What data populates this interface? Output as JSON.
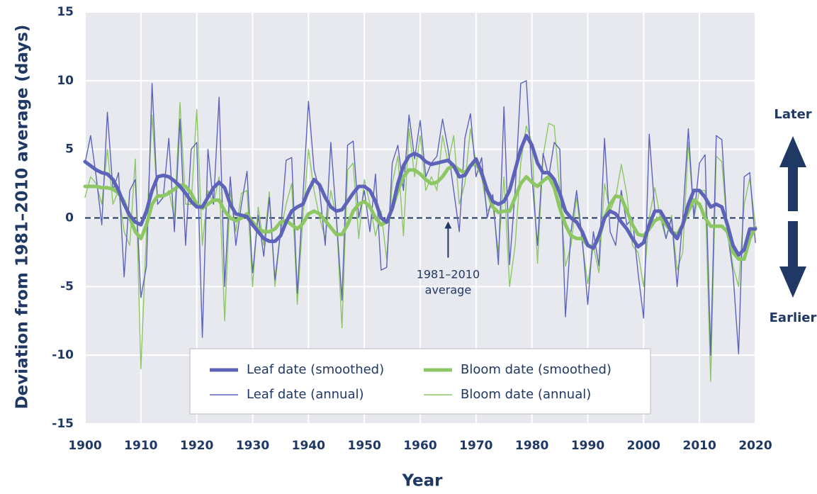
{
  "chart_data": {
    "type": "line",
    "x_label": "Year",
    "y_label": "Deviation from 1981–2010 average (days)",
    "direction_labels": {
      "up": "Later",
      "down": "Earlier"
    },
    "annotation": [
      "1981–2010",
      "average"
    ],
    "reference_line": 0,
    "annotation_x": 1965,
    "xlim": [
      1900,
      2020
    ],
    "ylim": [
      -15,
      15
    ],
    "xticks": [
      1900,
      1910,
      1920,
      1930,
      1940,
      1950,
      1960,
      1970,
      1980,
      1990,
      2000,
      2010,
      2020
    ],
    "yticks": [
      -15,
      -10,
      -5,
      0,
      5,
      10,
      15
    ],
    "grid": true,
    "x": [
      1900,
      1901,
      1902,
      1903,
      1904,
      1905,
      1906,
      1907,
      1908,
      1909,
      1910,
      1911,
      1912,
      1913,
      1914,
      1915,
      1916,
      1917,
      1918,
      1919,
      1920,
      1921,
      1922,
      1923,
      1924,
      1925,
      1926,
      1927,
      1928,
      1929,
      1930,
      1931,
      1932,
      1933,
      1934,
      1935,
      1936,
      1937,
      1938,
      1939,
      1940,
      1941,
      1942,
      1943,
      1944,
      1945,
      1946,
      1947,
      1948,
      1949,
      1950,
      1951,
      1952,
      1953,
      1954,
      1955,
      1956,
      1957,
      1958,
      1959,
      1960,
      1961,
      1962,
      1963,
      1964,
      1965,
      1966,
      1967,
      1968,
      1969,
      1970,
      1971,
      1972,
      1973,
      1974,
      1975,
      1976,
      1977,
      1978,
      1979,
      1980,
      1981,
      1982,
      1983,
      1984,
      1985,
      1986,
      1987,
      1988,
      1989,
      1990,
      1991,
      1992,
      1993,
      1994,
      1995,
      1996,
      1997,
      1998,
      1999,
      2000,
      2001,
      2002,
      2003,
      2004,
      2005,
      2006,
      2007,
      2008,
      2009,
      2010,
      2011,
      2012,
      2013,
      2014,
      2015,
      2016,
      2017,
      2018,
      2019,
      2020
    ],
    "series": [
      {
        "name": "Leaf date (smoothed)",
        "color": "#5d63b9",
        "values": [
          4.1,
          3.8,
          3.5,
          3.3,
          3.2,
          2.8,
          2.0,
          1.0,
          0.2,
          -0.3,
          -0.5,
          0.5,
          2.0,
          3.0,
          3.1,
          3.0,
          2.7,
          2.3,
          1.8,
          1.2,
          0.8,
          0.8,
          1.5,
          2.2,
          2.6,
          2.2,
          1.0,
          0.3,
          0.2,
          0.1,
          -0.5,
          -1.0,
          -1.5,
          -1.7,
          -1.7,
          -1.3,
          -0.3,
          0.5,
          0.8,
          1.0,
          2.0,
          2.8,
          2.4,
          1.5,
          0.8,
          0.5,
          0.6,
          1.2,
          1.8,
          2.3,
          2.3,
          2.0,
          1.2,
          0,
          -0.3,
          0.7,
          2.5,
          3.8,
          4.5,
          4.7,
          4.5,
          4.1,
          3.9,
          4.0,
          4.1,
          4.2,
          3.8,
          3.0,
          3.1,
          3.8,
          4.3,
          3.3,
          2.0,
          1.2,
          1.0,
          1.2,
          2.0,
          3.5,
          5.0,
          6.0,
          5.3,
          4.0,
          3.3,
          3.3,
          2.8,
          1.8,
          0.5,
          0,
          -0.3,
          -1.0,
          -2.0,
          -2.2,
          -1.3,
          0,
          0.5,
          0.3,
          -0.3,
          -0.8,
          -1.5,
          -2.1,
          -1.8,
          -0.5,
          0.5,
          0.5,
          -0.2,
          -1.0,
          -1.5,
          -0.5,
          1.0,
          2.0,
          2.0,
          1.5,
          0.8,
          1.0,
          0.8,
          -0.5,
          -2.0,
          -2.7,
          -2.3,
          -0.8,
          -0.8
        ]
      },
      {
        "name": "Bloom date (smoothed)",
        "color": "#8dc763",
        "values": [
          2.3,
          2.3,
          2.3,
          2.2,
          2.2,
          2.1,
          1.8,
          1.2,
          0,
          -1.0,
          -1.5,
          -0.5,
          1.0,
          1.6,
          1.6,
          1.8,
          2.1,
          2.4,
          2.3,
          1.8,
          1.0,
          0.7,
          1.0,
          1.3,
          1.3,
          0.5,
          0,
          -0.2,
          0,
          0.3,
          -0.3,
          -0.8,
          -1.0,
          -1.0,
          -0.8,
          -0.3,
          -0.2,
          -0.5,
          -0.8,
          -0.4,
          0.3,
          0.5,
          0.3,
          -0.2,
          -0.7,
          -1.2,
          -1.2,
          -0.5,
          0.5,
          1.0,
          1.2,
          0.8,
          0,
          -0.5,
          -0.3,
          0.7,
          2.0,
          3.0,
          3.5,
          3.5,
          3.2,
          2.8,
          2.5,
          2.6,
          3.0,
          3.6,
          3.8,
          3.5,
          3.3,
          3.8,
          4.0,
          3.2,
          2.0,
          0.8,
          0.4,
          0.5,
          0.5,
          1.5,
          2.5,
          3.0,
          2.6,
          2.3,
          2.7,
          3.0,
          2.2,
          0.7,
          -0.5,
          -1.3,
          -1.5,
          -1.5,
          -2.0,
          -2.1,
          -1.5,
          0,
          1.0,
          1.6,
          1.5,
          0.5,
          -0.5,
          -1.2,
          -1.3,
          -0.8,
          -0.2,
          0,
          -0.5,
          -1.0,
          -1.2,
          -0.5,
          0.5,
          1.3,
          1.0,
          0,
          -0.6,
          -0.6,
          -0.6,
          -1.0,
          -2.5,
          -3.0,
          -3.0,
          -1.5,
          -0.7
        ]
      },
      {
        "name": "Leaf date (annual)",
        "color": "#5d63b9",
        "values": [
          4,
          6,
          3,
          -0.5,
          7.7,
          2,
          3.3,
          -4.3,
          2,
          2.8,
          -5.8,
          -3.5,
          9.8,
          1,
          1.5,
          5.8,
          -1,
          7.2,
          -2,
          5,
          5.5,
          -8.7,
          5,
          1,
          8.8,
          -5,
          3,
          -2,
          1,
          3.4,
          -4,
          0.2,
          -2.8,
          1.5,
          -4.5,
          -1,
          4.2,
          4.4,
          -5.5,
          1.5,
          8.5,
          3.5,
          2,
          -2,
          5.5,
          0,
          -6,
          5.3,
          5.6,
          0,
          2,
          -1,
          3.2,
          -3.8,
          -3.6,
          4,
          5.3,
          2,
          7.5,
          4.3,
          7.1,
          3,
          4,
          4.5,
          7.2,
          5,
          2,
          -1,
          5.8,
          7.6,
          3,
          4.4,
          0,
          1.7,
          -3.4,
          8.1,
          -3.4,
          2,
          9.8,
          10,
          3,
          -2,
          4.7,
          3,
          5.5,
          5,
          -7.2,
          -1,
          2,
          -1.5,
          -6.3,
          -1,
          -3.5,
          5.8,
          -1,
          -2,
          2,
          -0.5,
          0,
          -4,
          -7.3,
          6.1,
          0.5,
          0.5,
          -1.5,
          0,
          -5,
          0,
          6.5,
          0,
          4,
          4.6,
          -10,
          6,
          5.7,
          -1,
          -4,
          -9.9,
          3,
          3.3,
          -1.8
        ]
      },
      {
        "name": "Bloom date (annual)",
        "color": "#8dc763",
        "values": [
          1.5,
          3,
          2.5,
          1,
          5,
          1,
          2,
          -1,
          -2,
          4.3,
          -11,
          -1,
          7.5,
          1,
          1.5,
          2,
          0,
          8.4,
          1,
          1,
          7.9,
          -2,
          2,
          1,
          3,
          -7.5,
          2,
          -1,
          1.8,
          2,
          -5,
          0.8,
          -2,
          1.9,
          -5,
          -1,
          1,
          2.5,
          -6.3,
          0,
          5,
          2,
          0,
          -1.5,
          2,
          0,
          -8,
          3.5,
          4,
          -1.5,
          2.8,
          1,
          -1.3,
          0.5,
          -3,
          2.5,
          4.5,
          -1.3,
          6.5,
          3,
          6,
          2,
          3,
          2,
          6,
          4,
          6,
          1,
          2.5,
          6.5,
          4,
          3,
          0.5,
          1,
          -2.5,
          3,
          -5,
          -2,
          4,
          6.7,
          5.5,
          -3.3,
          4.5,
          6.9,
          6.7,
          2,
          -3.5,
          -2,
          1.5,
          -1.8,
          -4.8,
          -2,
          -4,
          2.5,
          0.5,
          1.5,
          3.9,
          1.7,
          -2,
          -2.5,
          -5,
          0,
          2.2,
          0,
          -1.5,
          0.2,
          -3.8,
          -2.5,
          5.5,
          0,
          2,
          2,
          -11.9,
          4.5,
          4.1,
          -1,
          -3.5,
          -5,
          1,
          2.9,
          -0.5
        ]
      }
    ]
  }
}
